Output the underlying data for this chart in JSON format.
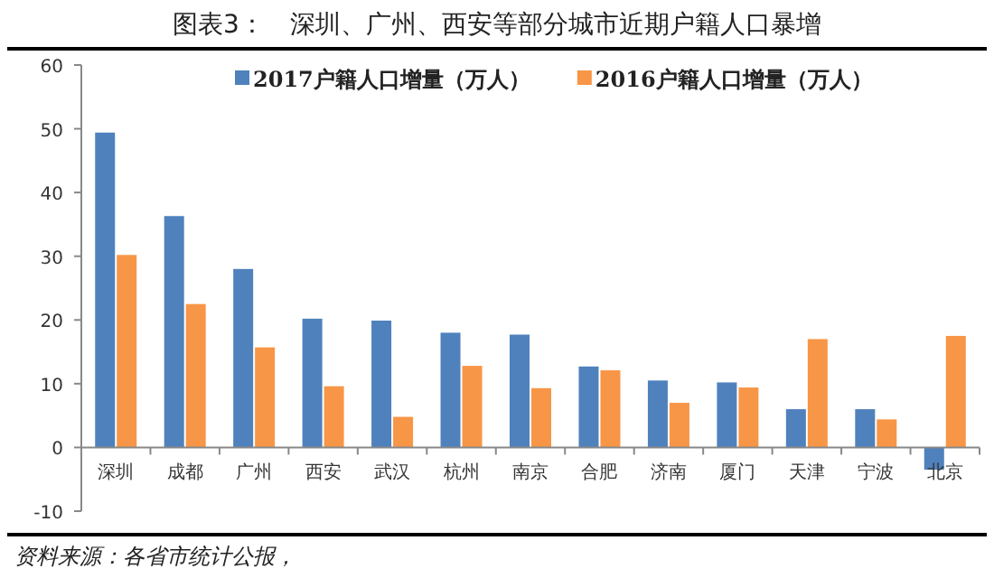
{
  "chart_data": {
    "type": "bar",
    "title": "图表3：　深圳、广州、西安等部分城市近期户籍人口暴增",
    "categories": [
      "深圳",
      "成都",
      "广州",
      "西安",
      "武汉",
      "杭州",
      "南京",
      "合肥",
      "济南",
      "厦门",
      "天津",
      "宁波",
      "北京"
    ],
    "series": [
      {
        "name": "2017户籍人口增量（万人）",
        "color": "#4f81bd",
        "values": [
          49.4,
          36.3,
          28.0,
          20.2,
          19.9,
          18.0,
          17.7,
          12.7,
          10.5,
          10.2,
          6.0,
          6.0,
          -3.5
        ]
      },
      {
        "name": "2016户籍人口增量（万人）",
        "color": "#f79646",
        "values": [
          30.2,
          22.5,
          15.7,
          9.6,
          4.8,
          12.8,
          9.3,
          12.1,
          7.0,
          9.4,
          17.0,
          4.4,
          17.5
        ]
      }
    ],
    "ylim": [
      -10,
      60
    ],
    "yticks": [
      -10,
      0,
      10,
      20,
      30,
      40,
      50,
      60
    ],
    "legend": "top",
    "grid": false,
    "annotations": [
      "资料来源：各省市统计公报，"
    ]
  }
}
